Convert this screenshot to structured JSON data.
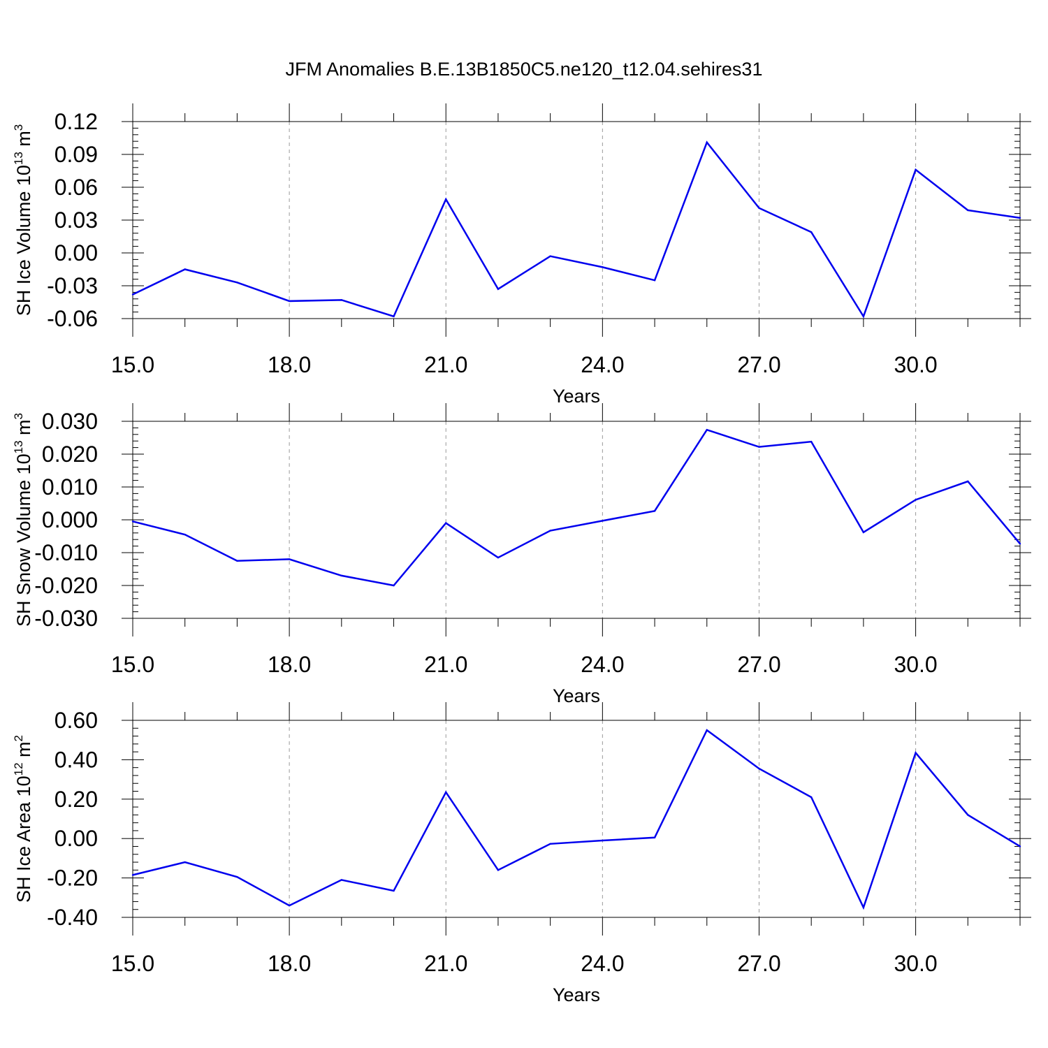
{
  "title": "JFM Anomalies B.E.13B1850C5.ne120_t12.04.sehires31",
  "colors": {
    "line": "#0000ee",
    "axis": "#000000",
    "grid": "#999999"
  },
  "chart_data": [
    {
      "type": "line",
      "ylabel": "SH Ice Volume 10",
      "ylabel_sup": "13",
      "ylabel_unit": "m",
      "ylabel_unit_sup": "3",
      "xlabel": "Years",
      "xlim": [
        15,
        32
      ],
      "ylim": [
        -0.06,
        0.12
      ],
      "xticks": [
        15,
        18,
        21,
        24,
        27,
        30
      ],
      "xtick_labels": [
        "15.0",
        "18.0",
        "21.0",
        "24.0",
        "27.0",
        "30.0"
      ],
      "yticks": [
        -0.06,
        -0.03,
        0.0,
        0.03,
        0.06,
        0.09,
        0.12
      ],
      "ytick_labels": [
        "-0.06",
        "-0.03",
        "0.00",
        "0.03",
        "0.06",
        "0.09",
        "0.12"
      ],
      "grid": "vertical dashed",
      "x": [
        15,
        16,
        17,
        18,
        19,
        20,
        21,
        22,
        23,
        24,
        25,
        26,
        27,
        28,
        29,
        30,
        31,
        32
      ],
      "series": [
        {
          "values": [
            -0.038,
            -0.015,
            -0.027,
            -0.044,
            -0.043,
            -0.058,
            0.049,
            -0.033,
            -0.003,
            -0.013,
            -0.025,
            0.101,
            0.041,
            0.019,
            -0.058,
            0.076,
            0.039,
            0.032
          ]
        }
      ]
    },
    {
      "type": "line",
      "ylabel": "SH Snow Volume 10",
      "ylabel_sup": "13",
      "ylabel_unit": "m",
      "ylabel_unit_sup": "3",
      "xlabel": "Years",
      "xlim": [
        15,
        32
      ],
      "ylim": [
        -0.03,
        0.03
      ],
      "xticks": [
        15,
        18,
        21,
        24,
        27,
        30
      ],
      "xtick_labels": [
        "15.0",
        "18.0",
        "21.0",
        "24.0",
        "27.0",
        "30.0"
      ],
      "yticks": [
        -0.03,
        -0.02,
        -0.01,
        0.0,
        0.01,
        0.02,
        0.03
      ],
      "ytick_labels": [
        "-0.030",
        "-0.020",
        "-0.010",
        "0.000",
        "0.010",
        "0.020",
        "0.030"
      ],
      "grid": "vertical dashed",
      "x": [
        15,
        16,
        17,
        18,
        19,
        20,
        21,
        22,
        23,
        24,
        25,
        26,
        27,
        28,
        29,
        30,
        31,
        32
      ],
      "series": [
        {
          "values": [
            -0.0005,
            -0.0045,
            -0.0125,
            -0.012,
            -0.017,
            -0.02,
            -0.001,
            -0.0115,
            -0.0033,
            -0.0003,
            0.0027,
            0.0274,
            0.0222,
            0.0238,
            -0.0038,
            0.0061,
            0.0117,
            -0.0073
          ]
        }
      ]
    },
    {
      "type": "line",
      "ylabel": "SH Ice Area 10",
      "ylabel_sup": "12",
      "ylabel_unit": "m",
      "ylabel_unit_sup": "2",
      "xlabel": "Years",
      "xlim": [
        15,
        32
      ],
      "ylim": [
        -0.4,
        0.6
      ],
      "xticks": [
        15,
        18,
        21,
        24,
        27,
        30
      ],
      "xtick_labels": [
        "15.0",
        "18.0",
        "21.0",
        "24.0",
        "27.0",
        "30.0"
      ],
      "yticks": [
        -0.4,
        -0.2,
        0.0,
        0.2,
        0.4,
        0.6
      ],
      "ytick_labels": [
        "-0.40",
        "-0.20",
        "0.00",
        "0.20",
        "0.40",
        "0.60"
      ],
      "grid": "vertical dashed",
      "x": [
        15,
        16,
        17,
        18,
        19,
        20,
        21,
        22,
        23,
        24,
        25,
        26,
        27,
        28,
        29,
        30,
        31,
        32
      ],
      "series": [
        {
          "values": [
            -0.185,
            -0.12,
            -0.195,
            -0.34,
            -0.21,
            -0.265,
            0.235,
            -0.16,
            -0.027,
            -0.01,
            0.005,
            0.55,
            0.355,
            0.21,
            -0.35,
            0.435,
            0.12,
            -0.04
          ]
        }
      ]
    }
  ]
}
